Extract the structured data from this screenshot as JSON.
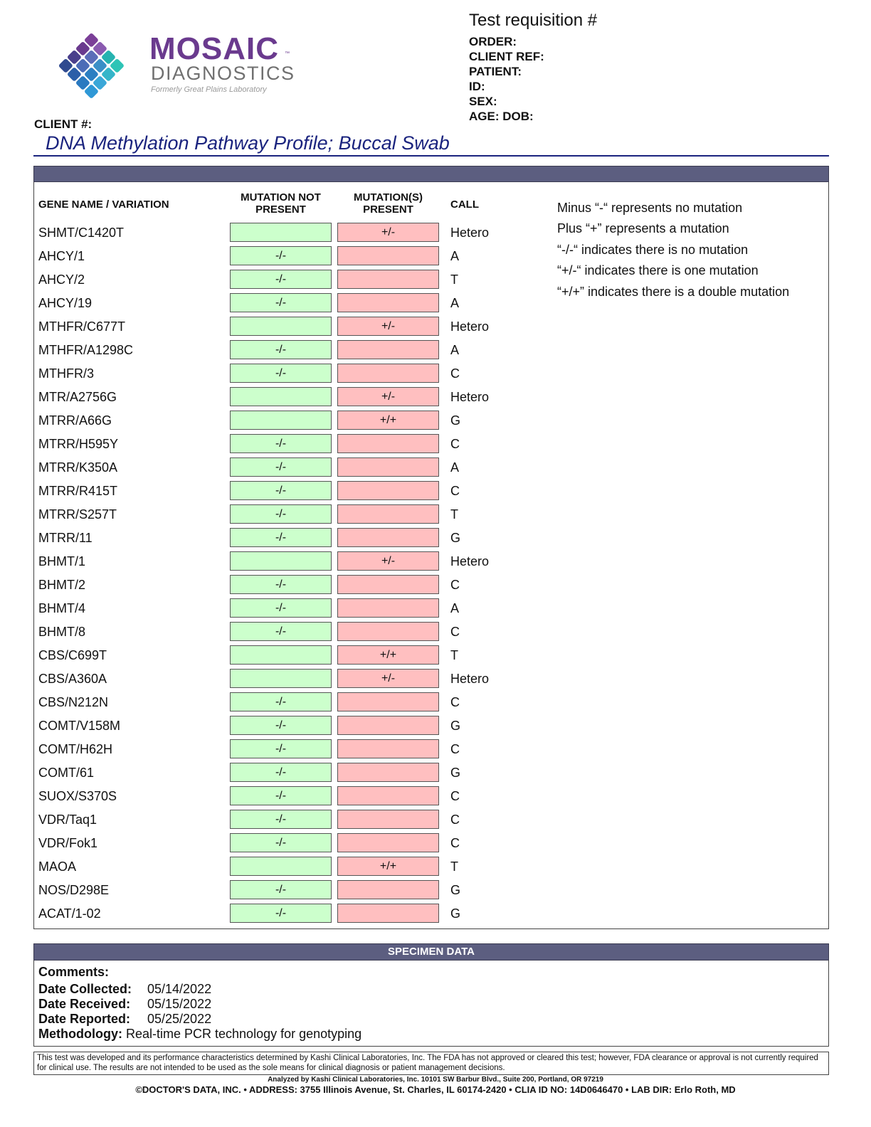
{
  "header": {
    "brand_line1": "MOSAIC",
    "brand_tm": "™",
    "brand_line2": "DIAGNOSTICS",
    "brand_line3": "Formerly Great Plains Laboratory",
    "requisition_title": "Test requisition #",
    "fields": [
      "ORDER:",
      "CLIENT REF:",
      "PATIENT:",
      "ID:",
      "SEX:",
      "AGE: DOB:"
    ],
    "client_label": "CLIENT #:",
    "report_title": "DNA Methylation Pathway Profile; Buccal Swab"
  },
  "colors": {
    "accent_bar": "#5c5e80",
    "title_blue": "#1a237e",
    "not_present": "#ccffcc",
    "present": "#ffbfc0",
    "brand_purple": "#6a3a8e"
  },
  "columns": {
    "gene": "GENE NAME / VARIATION",
    "not_present": "MUTATION NOT PRESENT",
    "present": "MUTATION(S) PRESENT",
    "call": "CALL"
  },
  "rows": [
    {
      "gene": "SHMT/C1420T",
      "not_present": "",
      "present": "+/-",
      "call": "Hetero"
    },
    {
      "gene": "AHCY/1",
      "not_present": "-/-",
      "present": "",
      "call": "A"
    },
    {
      "gene": "AHCY/2",
      "not_present": "-/-",
      "present": "",
      "call": "T"
    },
    {
      "gene": "AHCY/19",
      "not_present": "-/-",
      "present": "",
      "call": "A"
    },
    {
      "gene": "MTHFR/C677T",
      "not_present": "",
      "present": "+/-",
      "call": "Hetero"
    },
    {
      "gene": "MTHFR/A1298C",
      "not_present": "-/-",
      "present": "",
      "call": "A"
    },
    {
      "gene": "MTHFR/3",
      "not_present": "-/-",
      "present": "",
      "call": "C"
    },
    {
      "gene": "MTR/A2756G",
      "not_present": "",
      "present": "+/-",
      "call": "Hetero"
    },
    {
      "gene": "MTRR/A66G",
      "not_present": "",
      "present": "+/+",
      "call": "G"
    },
    {
      "gene": "MTRR/H595Y",
      "not_present": "-/-",
      "present": "",
      "call": "C"
    },
    {
      "gene": "MTRR/K350A",
      "not_present": "-/-",
      "present": "",
      "call": "A"
    },
    {
      "gene": "MTRR/R415T",
      "not_present": "-/-",
      "present": "",
      "call": "C"
    },
    {
      "gene": "MTRR/S257T",
      "not_present": "-/-",
      "present": "",
      "call": "T"
    },
    {
      "gene": "MTRR/11",
      "not_present": "-/-",
      "present": "",
      "call": "G"
    },
    {
      "gene": "BHMT/1",
      "not_present": "",
      "present": "+/-",
      "call": "Hetero"
    },
    {
      "gene": "BHMT/2",
      "not_present": "-/-",
      "present": "",
      "call": "C"
    },
    {
      "gene": "BHMT/4",
      "not_present": "-/-",
      "present": "",
      "call": "A"
    },
    {
      "gene": "BHMT/8",
      "not_present": "-/-",
      "present": "",
      "call": "C"
    },
    {
      "gene": "CBS/C699T",
      "not_present": "",
      "present": "+/+",
      "call": "T"
    },
    {
      "gene": "CBS/A360A",
      "not_present": "",
      "present": "+/-",
      "call": "Hetero"
    },
    {
      "gene": "CBS/N212N",
      "not_present": "-/-",
      "present": "",
      "call": "C"
    },
    {
      "gene": "COMT/V158M",
      "not_present": "-/-",
      "present": "",
      "call": "G"
    },
    {
      "gene": "COMT/H62H",
      "not_present": "-/-",
      "present": "",
      "call": "C"
    },
    {
      "gene": "COMT/61",
      "not_present": "-/-",
      "present": "",
      "call": "G"
    },
    {
      "gene": "SUOX/S370S",
      "not_present": "-/-",
      "present": "",
      "call": "C"
    },
    {
      "gene": "VDR/Taq1",
      "not_present": "-/-",
      "present": "",
      "call": "C"
    },
    {
      "gene": "VDR/Fok1",
      "not_present": "-/-",
      "present": "",
      "call": "C"
    },
    {
      "gene": "MAOA",
      "not_present": "",
      "present": "+/+",
      "call": "T"
    },
    {
      "gene": "NOS/D298E",
      "not_present": "-/-",
      "present": "",
      "call": "G"
    },
    {
      "gene": "ACAT/1-02",
      "not_present": "-/-",
      "present": "",
      "call": "G"
    }
  ],
  "legend": [
    "Minus “-“ represents no mutation",
    "Plus “+” represents a mutation",
    "“-/-“ indicates there is no mutation",
    "“+/-“ indicates there is one mutation",
    "“+/+” indicates there is a double mutation"
  ],
  "specimen": {
    "header": "SPECIMEN DATA",
    "comments_label": "Comments:",
    "date_collected_label": "Date Collected:",
    "date_collected": "05/14/2022",
    "date_received_label": "Date Received:",
    "date_received": "05/15/2022",
    "date_reported_label": "Date Reported:",
    "date_reported": "05/25/2022",
    "methodology_label": "Methodology:",
    "methodology": "Real-time PCR technology for genotyping"
  },
  "disclaimer": "This test was developed and its performance characteristics determined by Kashi Clinical Laboratories, Inc. The FDA has not approved or cleared this test; however, FDA clearance or approval is not currently required for clinical use. The results are not intended to be used as the sole means for clinical diagnosis or patient management decisions.",
  "analyzed_by": "Analyzed by Kashi Clinical Laboratories, Inc. 10101 SW Barbur Blvd., Suite 200, Portland, OR 97219",
  "footer": "©DOCTOR'S DATA, INC. • ADDRESS: 3755 Illinois Avenue, St. Charles, IL 60174-2420 • CLIA ID NO: 14D0646470 • LAB DIR: Erlo Roth, MD"
}
